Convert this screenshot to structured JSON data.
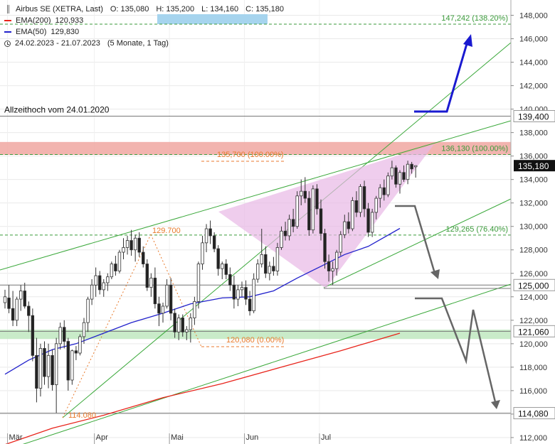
{
  "legend": {
    "instrument": "Airbus SE (XETRA, Last)",
    "ohlc": {
      "open": "O: 135,080",
      "high": "H: 135,200",
      "low": "L: 134,160",
      "close": "C: 135,180"
    },
    "ema200": {
      "label": "EMA(200)",
      "value": "120,933",
      "color": "#e8241b"
    },
    "ema50": {
      "label": "EMA(50)",
      "value": "129,830",
      "color": "#2222cc"
    },
    "range": "24.02.2023 - 21.07.2023",
    "period": "(5 Monate, 1 Tag)",
    "icons": [
      "candlestick-icon",
      "clock-icon"
    ]
  },
  "chart_data": {
    "type": "candlestick",
    "y_axis": {
      "min": 112,
      "max": 149,
      "ticks": [
        112,
        114,
        116,
        118,
        120,
        122,
        124,
        126,
        128,
        130,
        132,
        134,
        136,
        138,
        140,
        142,
        144,
        146,
        148
      ],
      "tick_labels": [
        "112,000",
        "114,000",
        "116,000",
        "118,000",
        "120,000",
        "122,000",
        "124,000",
        "126,000",
        "128,000",
        "130,000",
        "132,000",
        "134,000",
        "136,000",
        "138,000",
        "140,000",
        "142,000",
        "144,000",
        "146,000",
        "148,000"
      ]
    },
    "x_axis": {
      "labels": [
        "Mär",
        "Apr",
        "Mai",
        "Jun",
        "Jul"
      ],
      "label_index": [
        1,
        23,
        42,
        61,
        80
      ]
    },
    "candles": [
      [
        123.5,
        124.6,
        123.0,
        124.0
      ],
      [
        123.9,
        125.0,
        122.6,
        123.0
      ],
      [
        123.0,
        124.5,
        121.5,
        122.0
      ],
      [
        122.0,
        124.0,
        121.5,
        123.8
      ],
      [
        123.8,
        125.0,
        122.8,
        124.5
      ],
      [
        124.5,
        125.2,
        123.0,
        123.2
      ],
      [
        123.2,
        123.6,
        121.0,
        122.4
      ],
      [
        122.4,
        123.0,
        118.5,
        119.0
      ],
      [
        119.0,
        120.5,
        115.0,
        116.2
      ],
      [
        116.2,
        120.0,
        115.5,
        119.6
      ],
      [
        119.6,
        120.2,
        116.5,
        117.2
      ],
      [
        117.2,
        120.0,
        116.2,
        119.0
      ],
      [
        119.0,
        119.5,
        116.0,
        116.5
      ],
      [
        116.5,
        120.5,
        114.1,
        120.0
      ],
      [
        120.0,
        121.8,
        119.5,
        121.4
      ],
      [
        121.4,
        122.0,
        119.6,
        120.2
      ],
      [
        120.2,
        120.5,
        116.0,
        116.9
      ],
      [
        116.9,
        119.5,
        116.5,
        119.4
      ],
      [
        119.4,
        119.8,
        118.6,
        119.2
      ],
      [
        119.2,
        120.8,
        119.0,
        120.6
      ],
      [
        120.6,
        122.2,
        120.0,
        121.8
      ],
      [
        121.8,
        124.0,
        121.0,
        123.8
      ],
      [
        123.8,
        125.5,
        123.3,
        125.0
      ],
      [
        125.0,
        126.5,
        124.0,
        125.8
      ],
      [
        125.8,
        126.2,
        124.2,
        124.6
      ],
      [
        124.6,
        125.5,
        124.0,
        125.2
      ],
      [
        125.2,
        126.0,
        124.5,
        125.7
      ],
      [
        125.7,
        127.0,
        125.5,
        126.8
      ],
      [
        126.8,
        127.5,
        125.8,
        126.2
      ],
      [
        126.2,
        128.0,
        126.0,
        127.8
      ],
      [
        127.8,
        129.0,
        127.2,
        128.2
      ],
      [
        128.2,
        129.2,
        127.6,
        128.8
      ],
      [
        128.8,
        129.7,
        127.5,
        128.0
      ],
      [
        128.0,
        129.3,
        127.0,
        129.0
      ],
      [
        129.0,
        129.5,
        127.4,
        127.8
      ],
      [
        127.8,
        128.3,
        126.5,
        126.8
      ],
      [
        126.8,
        127.2,
        124.5,
        124.8
      ],
      [
        124.8,
        126.0,
        124.0,
        125.6
      ],
      [
        125.6,
        126.5,
        123.0,
        123.4
      ],
      [
        123.4,
        124.0,
        121.5,
        122.6
      ],
      [
        122.6,
        123.5,
        121.8,
        123.2
      ],
      [
        123.2,
        125.5,
        123.0,
        125.0
      ],
      [
        125.0,
        125.6,
        122.0,
        122.6
      ],
      [
        122.6,
        123.0,
        120.5,
        121.0
      ],
      [
        121.0,
        122.5,
        120.3,
        122.2
      ],
      [
        122.2,
        122.5,
        120.6,
        121.0
      ],
      [
        121.0,
        121.5,
        120.3,
        121.2
      ],
      [
        121.2,
        122.6,
        120.1,
        122.2
      ],
      [
        122.2,
        124.0,
        121.6,
        123.6
      ],
      [
        123.6,
        127.0,
        123.0,
        126.8
      ],
      [
        126.8,
        129.2,
        126.3,
        128.6
      ],
      [
        128.6,
        130.2,
        127.8,
        129.8
      ],
      [
        129.8,
        130.5,
        128.5,
        129.2
      ],
      [
        129.2,
        129.5,
        127.8,
        128.1
      ],
      [
        128.1,
        128.4,
        125.8,
        126.4
      ],
      [
        126.4,
        127.0,
        125.5,
        126.8
      ],
      [
        126.8,
        127.2,
        125.5,
        125.9
      ],
      [
        125.9,
        126.5,
        124.5,
        125.0
      ],
      [
        125.0,
        125.8,
        123.0,
        123.8
      ],
      [
        123.8,
        125.0,
        123.2,
        124.6
      ],
      [
        124.6,
        125.3,
        124.0,
        124.8
      ],
      [
        124.8,
        125.4,
        123.3,
        123.8
      ],
      [
        123.8,
        124.5,
        122.4,
        122.8
      ],
      [
        122.8,
        126.0,
        122.6,
        125.5
      ],
      [
        125.5,
        127.2,
        125.2,
        126.8
      ],
      [
        126.8,
        129.8,
        126.5,
        127.6
      ],
      [
        127.6,
        128.3,
        125.6,
        126.0
      ],
      [
        126.0,
        127.0,
        125.4,
        126.6
      ],
      [
        126.6,
        127.4,
        125.8,
        126.2
      ],
      [
        126.2,
        128.6,
        125.8,
        128.2
      ],
      [
        128.2,
        130.0,
        128.0,
        129.6
      ],
      [
        129.6,
        130.4,
        128.8,
        129.2
      ],
      [
        129.2,
        131.0,
        128.8,
        130.6
      ],
      [
        130.6,
        131.5,
        129.5,
        130.0
      ],
      [
        130.0,
        133.0,
        129.8,
        132.6
      ],
      [
        132.6,
        134.0,
        131.8,
        133.0
      ],
      [
        133.0,
        134.2,
        132.0,
        132.4
      ],
      [
        132.4,
        133.0,
        129.2,
        129.7
      ],
      [
        129.7,
        133.5,
        129.4,
        133.2
      ],
      [
        133.2,
        133.6,
        131.0,
        131.5
      ],
      [
        131.5,
        132.3,
        128.8,
        129.4
      ],
      [
        129.4,
        129.8,
        126.4,
        127.0
      ],
      [
        127.0,
        127.6,
        125.3,
        126.2
      ],
      [
        126.2,
        127.0,
        125.0,
        126.4
      ],
      [
        126.4,
        128.0,
        125.8,
        127.8
      ],
      [
        127.8,
        129.6,
        127.5,
        129.3
      ],
      [
        129.3,
        131.0,
        129.0,
        130.4
      ],
      [
        130.4,
        131.2,
        129.4,
        129.8
      ],
      [
        129.8,
        132.5,
        129.6,
        132.2
      ],
      [
        132.2,
        133.0,
        130.8,
        131.2
      ],
      [
        131.2,
        133.6,
        130.8,
        133.4
      ],
      [
        133.4,
        133.9,
        130.8,
        131.5
      ],
      [
        131.5,
        132.0,
        129.1,
        129.5
      ],
      [
        129.5,
        131.5,
        129.1,
        131.2
      ],
      [
        131.2,
        132.6,
        130.6,
        132.4
      ],
      [
        132.4,
        133.6,
        131.6,
        133.3
      ],
      [
        133.3,
        134.0,
        132.2,
        132.7
      ],
      [
        132.7,
        134.6,
        132.5,
        134.3
      ],
      [
        134.3,
        135.6,
        134.0,
        135.0
      ],
      [
        135.0,
        135.2,
        133.3,
        133.6
      ],
      [
        133.6,
        134.8,
        132.8,
        134.6
      ],
      [
        134.6,
        135.2,
        133.8,
        134.0
      ],
      [
        134.0,
        135.6,
        133.6,
        135.3
      ],
      [
        135.3,
        135.5,
        134.5,
        134.9
      ],
      [
        135.08,
        135.2,
        134.16,
        135.18
      ]
    ],
    "ema200": [
      [
        0,
        111.4
      ],
      [
        12,
        112.8
      ],
      [
        25,
        113.9
      ],
      [
        40,
        115.4
      ],
      [
        55,
        116.6
      ],
      [
        70,
        118.0
      ],
      [
        85,
        119.4
      ],
      [
        100,
        120.9
      ]
    ],
    "ema50": [
      [
        0,
        117.4
      ],
      [
        6,
        118.6
      ],
      [
        12,
        119.5
      ],
      [
        18,
        120.0
      ],
      [
        25,
        120.9
      ],
      [
        32,
        121.8
      ],
      [
        40,
        122.6
      ],
      [
        47,
        123.4
      ],
      [
        55,
        123.9
      ],
      [
        62,
        124.0
      ],
      [
        68,
        124.5
      ],
      [
        74,
        125.6
      ],
      [
        80,
        126.6
      ],
      [
        86,
        127.6
      ],
      [
        92,
        128.3
      ],
      [
        100,
        129.83
      ]
    ],
    "price_label": "135,180",
    "horizontal_levels": [
      {
        "value": 139.4,
        "label": "139,400",
        "style": "solid"
      },
      {
        "value": 125.0,
        "label": "125,000",
        "style": "solid"
      },
      {
        "value": 121.06,
        "label": "121,060",
        "style": "solid"
      },
      {
        "value": 114.08,
        "label": "114,080",
        "style": "solid"
      },
      {
        "value": 147.242,
        "label": "147,242 (138.20%)",
        "style": "dashed"
      },
      {
        "value": 136.13,
        "label": "136,130 (100.00%)",
        "style": "dashed"
      },
      {
        "value": 129.265,
        "label": "129,265 (76.40%)",
        "style": "dashed"
      }
    ],
    "zones": [
      {
        "from": 136.1,
        "to": 137.2,
        "color": "#f0a7a1",
        "label": "Allzeithoch vom 24.01.2020"
      },
      {
        "from": 120.4,
        "to": 121.2,
        "color": "#bfe7c0"
      }
    ],
    "annotations": [
      {
        "text": "129.700",
        "x": 37,
        "y": 129.7
      },
      {
        "text": "114.080",
        "x": 15,
        "y": 114.08
      },
      {
        "text": "120,080 (0.00%)",
        "x": 55,
        "y": 120.1
      },
      {
        "text": "135,700 (100.00%)",
        "x": 50,
        "y": 135.75
      }
    ]
  }
}
